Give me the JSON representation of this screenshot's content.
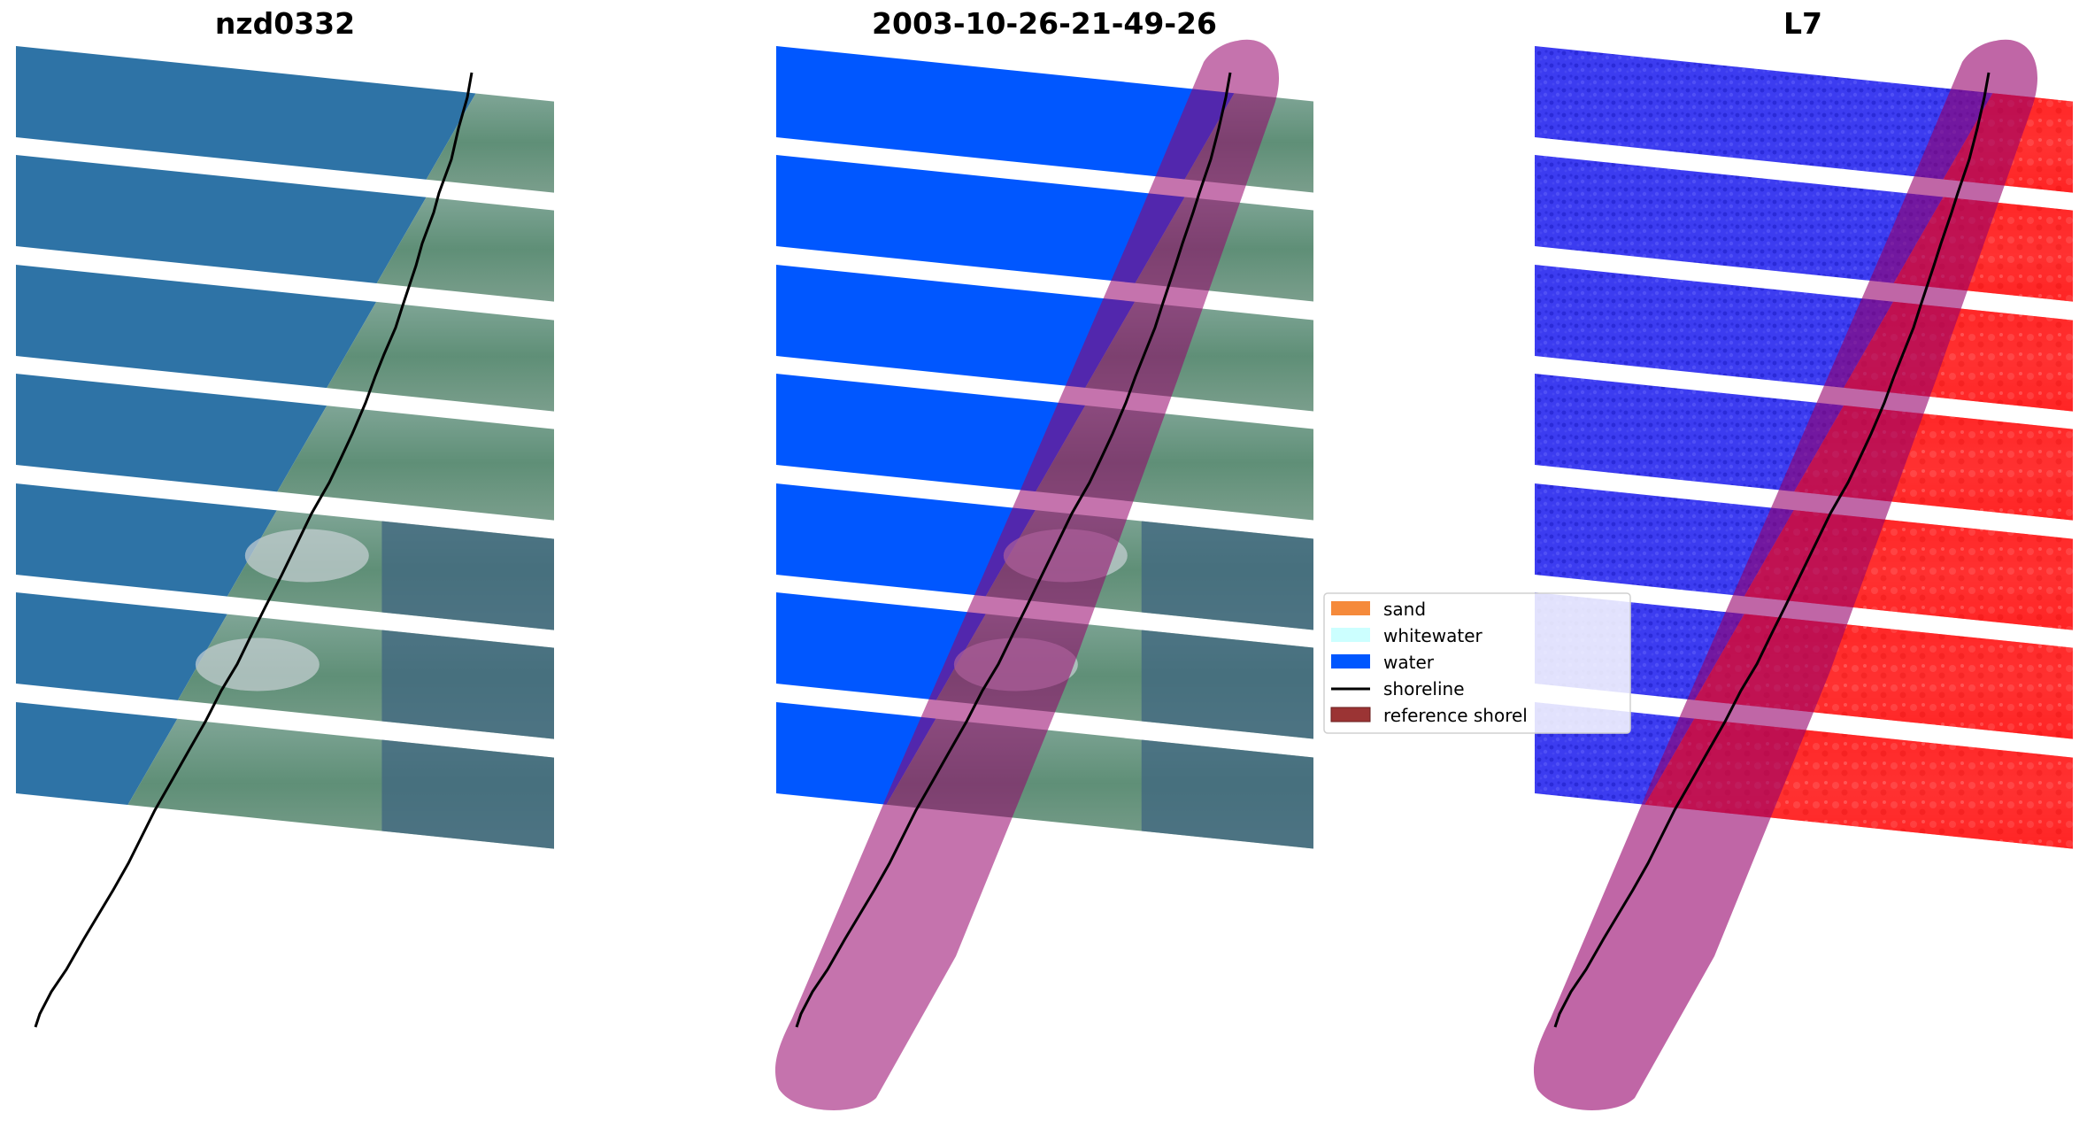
{
  "panels": [
    {
      "title": "nzd0332",
      "view": "rgb"
    },
    {
      "title": "2003-10-26-21-49-26",
      "view": "classified"
    },
    {
      "title": "L7",
      "view": "mndwi"
    }
  ],
  "legend": {
    "items": [
      {
        "label": "sand",
        "color": "#f58a3b",
        "kind": "patch"
      },
      {
        "label": "whitewater",
        "color": "#ccffff",
        "kind": "patch"
      },
      {
        "label": "water",
        "color": "#0057ff",
        "kind": "patch"
      },
      {
        "label": "shoreline",
        "color": "#000000",
        "kind": "line"
      },
      {
        "label": "reference shorel",
        "color": "#9b3434",
        "kind": "patch"
      }
    ]
  },
  "colors": {
    "sea_rgb": "#2e73a6",
    "land_rgb": "#6f9a86",
    "land_dark": "#3f6580",
    "urban": "#c9d2d6",
    "water_class": "#0057ff",
    "water_index": "#3a3aee",
    "land_index": "#ff2424",
    "buffer": "#96006a"
  }
}
